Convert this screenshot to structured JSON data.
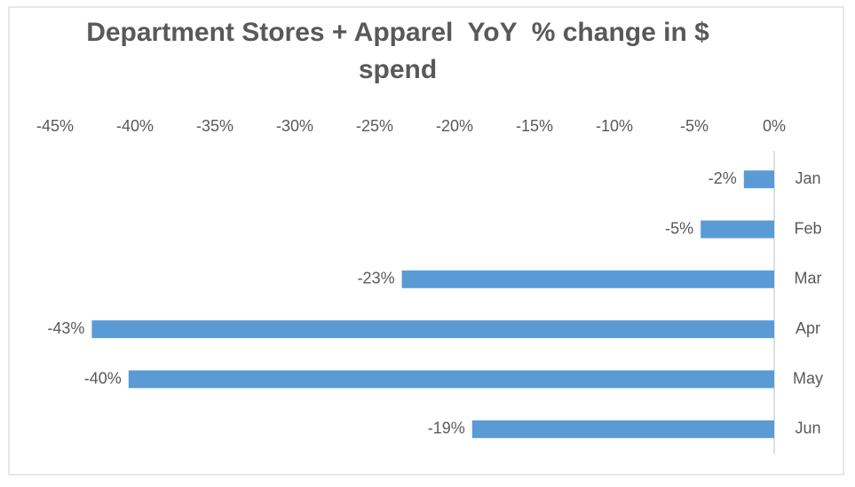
{
  "chart_data": {
    "type": "bar",
    "orientation": "horizontal",
    "title": "Department Stores + Apparel  YoY  % change in $ spend",
    "categories": [
      "Jan",
      "Feb",
      "Mar",
      "Apr",
      "May",
      "Jun"
    ],
    "values": [
      -1.9,
      -4.6,
      -23.3,
      -42.7,
      -40.4,
      -18.9
    ],
    "value_labels": [
      "-2%",
      "-5%",
      "-23%",
      "-43%",
      "-40%",
      "-19%"
    ],
    "color": "#5b9bd5",
    "xlim": [
      -45,
      0
    ],
    "xticks": [
      {
        "value": -45,
        "label": "-45%"
      },
      {
        "value": -40,
        "label": "-40%"
      },
      {
        "value": -35,
        "label": "-35%"
      },
      {
        "value": -30,
        "label": "-30%"
      },
      {
        "value": -25,
        "label": "-25%"
      },
      {
        "value": -20,
        "label": "-20%"
      },
      {
        "value": -15,
        "label": "-15%"
      },
      {
        "value": -10,
        "label": "-10%"
      },
      {
        "value": -5,
        "label": "-5%"
      },
      {
        "value": 0,
        "label": "0%"
      }
    ],
    "grid": false
  }
}
